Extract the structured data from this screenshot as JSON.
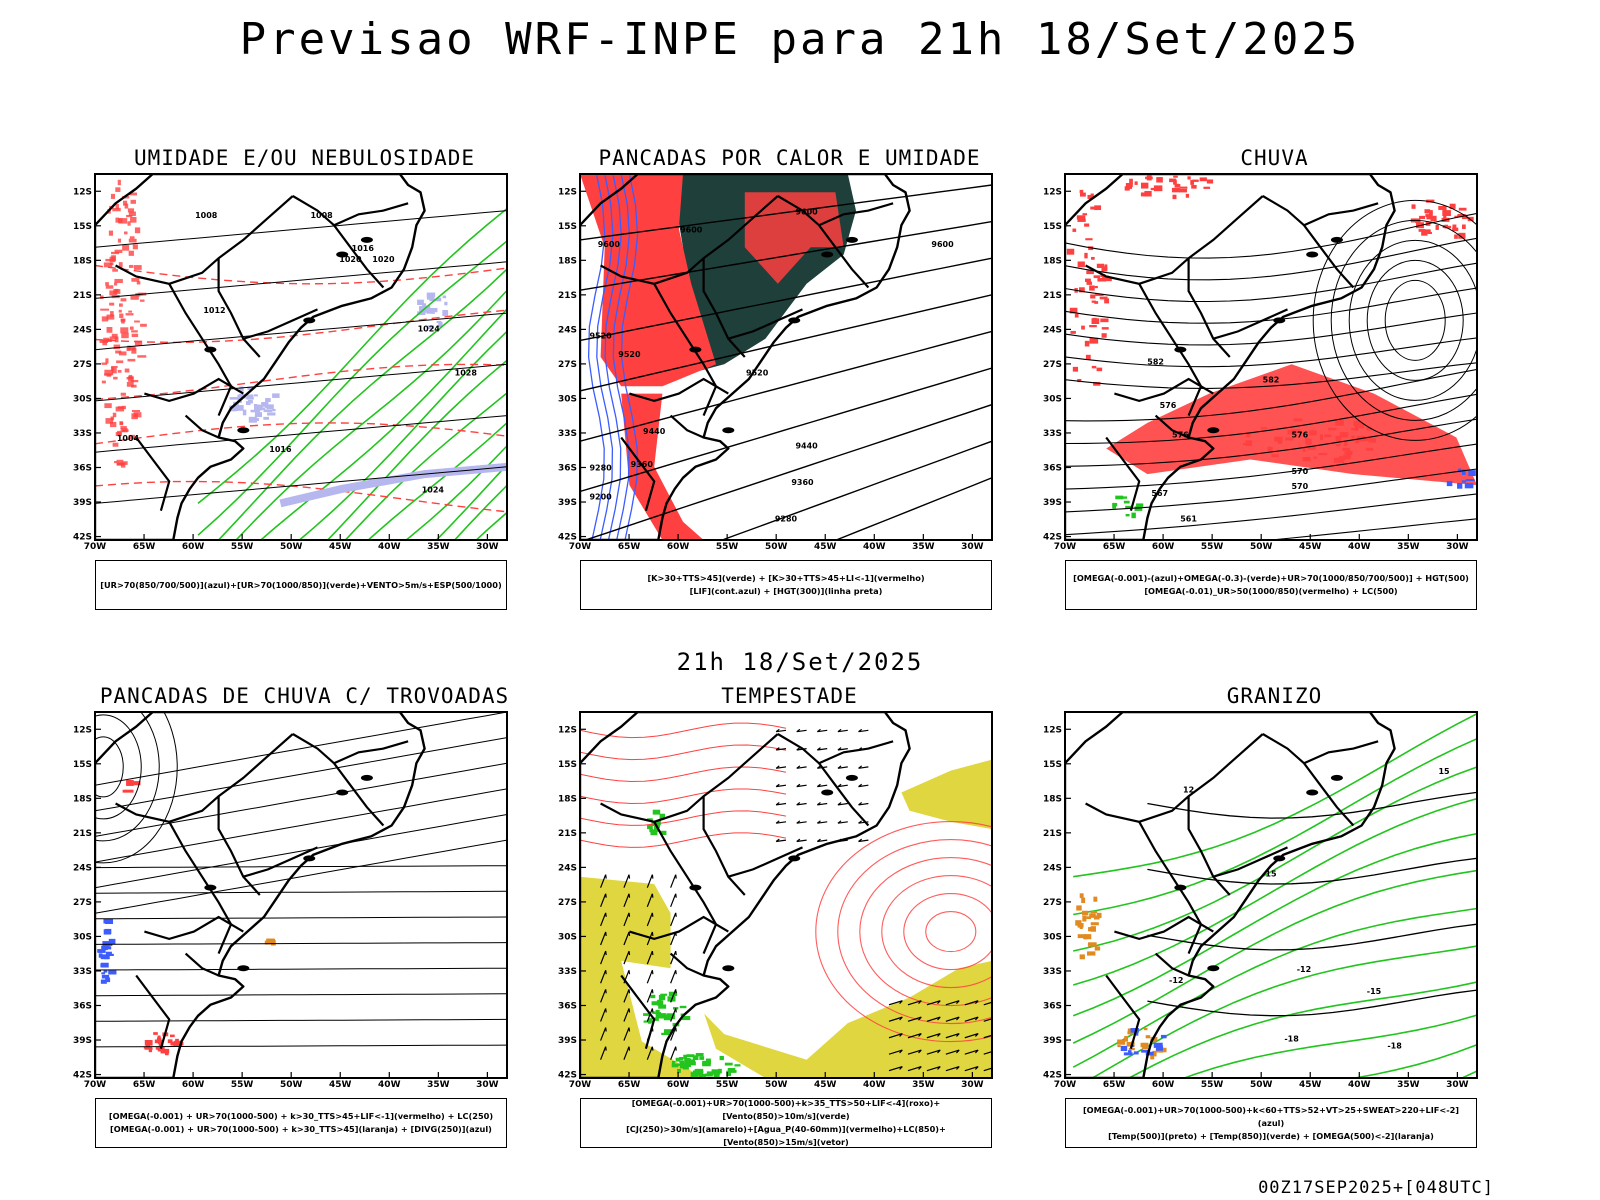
{
  "title": "Previsao WRF-INPE  para 21h 18/Set/2025",
  "mid_title": "21h 18/Set/2025",
  "footer": "00Z17SEP2025+[048UTC]",
  "axes": {
    "lat_labels": [
      "12S",
      "15S",
      "18S",
      "21S",
      "24S",
      "27S",
      "30S",
      "33S",
      "36S",
      "39S",
      "42S"
    ],
    "lon_labels": [
      "70W",
      "65W",
      "60W",
      "55W",
      "50W",
      "45W",
      "40W",
      "35W",
      "30W"
    ]
  },
  "colors": {
    "red": "#ff4040",
    "green": "#22c41e",
    "blue": "#3c5cff",
    "lavender": "#b7b7f0",
    "dark_teal": "#1f3f3a",
    "yellow": "#e0d640",
    "orange": "#e08a20"
  },
  "panels": [
    {
      "id": "umidade",
      "title": "UMIDADE E/OU NEBULOSIDADE",
      "legend": [
        "[UR>70(850/700/500)](azul)+[UR>70(1000/850)](verde)+VENTO>5m/s+ESP(500/1000)"
      ],
      "contour_labels": [
        "1008",
        "1008",
        "1012",
        "1016",
        "1020",
        "1024",
        "1028",
        "1004",
        "1016",
        "1024",
        "1020"
      ]
    },
    {
      "id": "pancadas-calor",
      "title": "PANCADAS POR CALOR E UMIDADE",
      "legend": [
        "[K>30+TTS>45](verde) + [K>30+TTS>45+LI<-1](vermelho)",
        "[LIF](cont.azul) + [HGT(300)](linha preta)"
      ],
      "contour_labels": [
        "9600",
        "9600",
        "9600",
        "9600",
        "9520",
        "9520",
        "9520",
        "9440",
        "9440",
        "9360",
        "9360",
        "9280",
        "9280",
        "9200"
      ]
    },
    {
      "id": "chuva",
      "title": "CHUVA",
      "legend": [
        "[OMEGA(-0.001)-(azul)+OMEGA(-0.3)-(verde)+UR>70(1000/850/700/500)] + HGT(500)",
        "[OMEGA(-0.01)_UR>50(1000/850)(vermelho) + LC(500)"
      ],
      "contour_labels": [
        "582",
        "582",
        "576",
        "576",
        "576",
        "570",
        "570",
        "567",
        "561"
      ]
    },
    {
      "id": "trovoadas",
      "title": "PANCADAS DE CHUVA C/ TROVOADAS",
      "legend": [
        "[OMEGA(-0.001) + UR>70(1000-500) + k>30_TTS>45+LIF<-1](vermelho) + LC(250)",
        "[OMEGA(-0.001) + UR>70(1000-500) + k>30_TTS>45](laranja) + [DIVG(250)](azul)"
      ],
      "contour_labels": []
    },
    {
      "id": "tempestade",
      "title": "TEMPESTADE",
      "legend": [
        "[OMEGA(-0.001)+UR>70(1000-500)+k>35_TTS>50+LIF<-4](roxo)+[Vento(850)>10m/s](verde)",
        "[CJ(250)>30m/s](amarelo)+[Agua_P(40-60mm)](vermelho)+LC(850)+[Vento(850)>15m/s](vetor)"
      ],
      "contour_labels": []
    },
    {
      "id": "granizo",
      "title": "GRANIZO",
      "legend": [
        "[OMEGA(-0.001)+UR>70(1000-500)+k<60+TTS>52+VT>25+SWEAT>220+LIF<-2](azul)",
        "[Temp(500)](preto) + [Temp(850)](verde) + [OMEGA(500)<-2](laranja)"
      ],
      "contour_labels": [
        "-12",
        "-12",
        "-15",
        "-18",
        "-18",
        "15",
        "15",
        "12"
      ]
    }
  ]
}
